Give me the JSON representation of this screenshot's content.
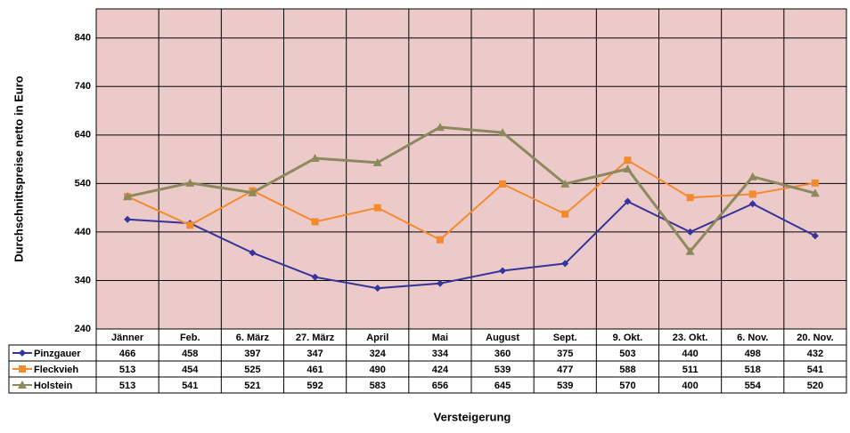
{
  "chart_data": {
    "type": "line",
    "y_label": "Durchschnittspreise netto in Euro",
    "x_label": "Versteigerung",
    "categories": [
      "Jänner",
      "Feb.",
      "6. März",
      "27. März",
      "April",
      "Mai",
      "August",
      "Sept.",
      "9. Okt.",
      "23. Okt.",
      "6. Nov.",
      "20. Nov."
    ],
    "series": [
      {
        "name": "Pinzgauer",
        "color": "#34349c",
        "values": [
          466,
          458,
          397,
          347,
          324,
          334,
          360,
          375,
          503,
          440,
          498,
          432
        ]
      },
      {
        "name": "Fleckvieh",
        "color": "#f38a2e",
        "values": [
          513,
          454,
          525,
          461,
          490,
          424,
          539,
          477,
          588,
          511,
          518,
          541
        ]
      },
      {
        "name": "Holstein",
        "color": "#8c8a5c",
        "values": [
          513,
          541,
          521,
          592,
          583,
          656,
          645,
          539,
          570,
          400,
          554,
          520
        ]
      }
    ],
    "ylim": [
      240,
      900
    ],
    "yticks": [
      240,
      340,
      440,
      540,
      640,
      740,
      840
    ],
    "grid": true,
    "background": "#edcaca"
  }
}
